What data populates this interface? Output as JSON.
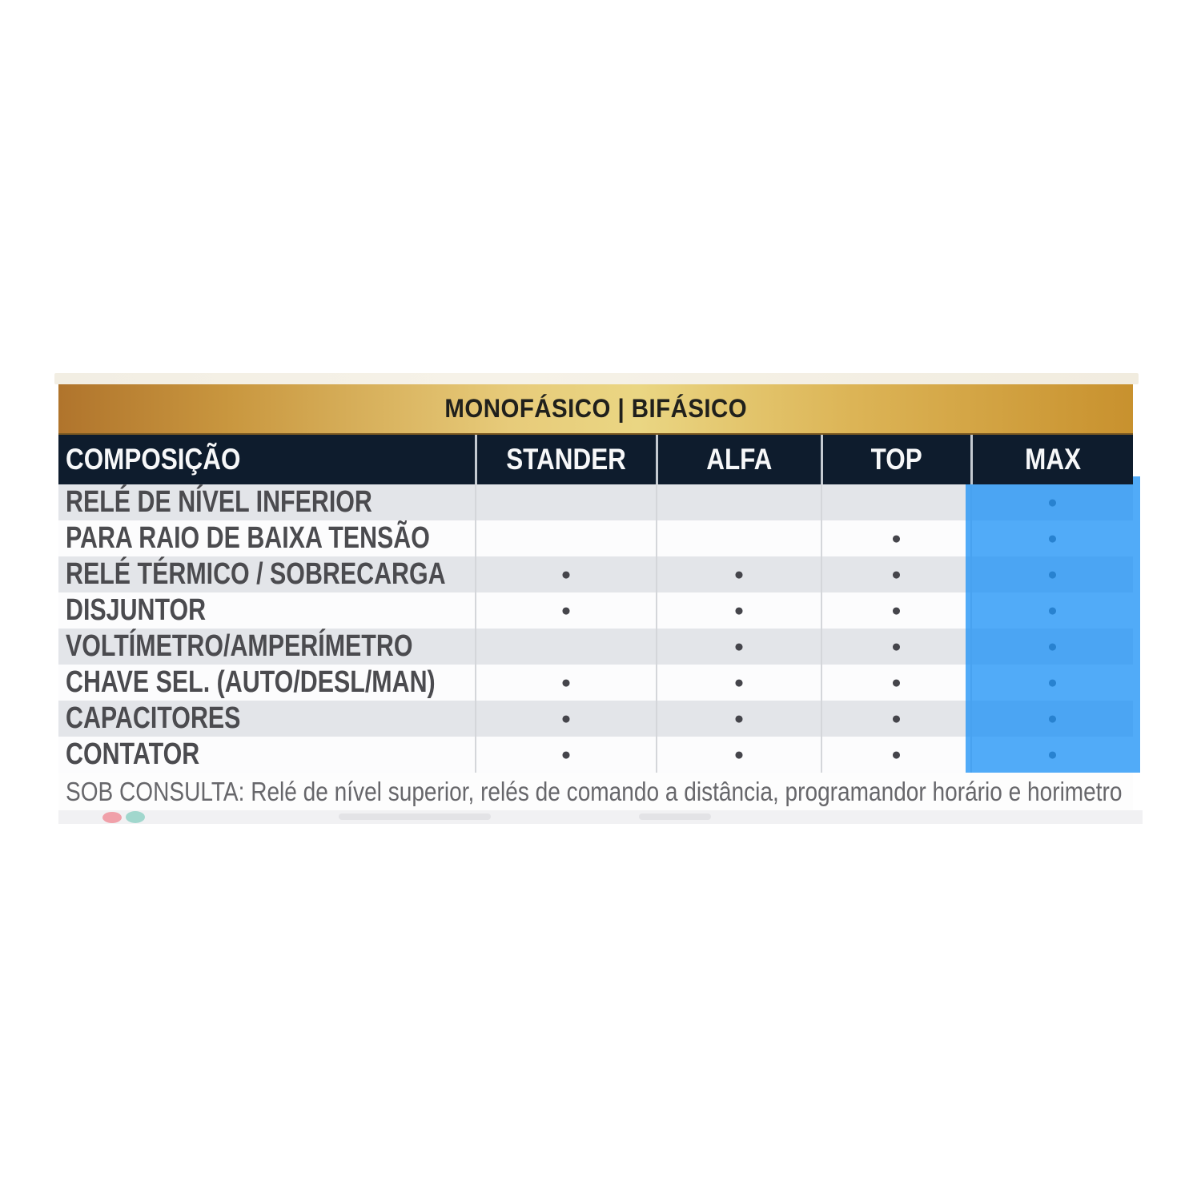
{
  "banner": {
    "title": "MONOFÁSICO | BIFÁSICO"
  },
  "table": {
    "columns": [
      "COMPOSIÇÃO",
      "STANDER",
      "ALFA",
      "TOP",
      "MAX"
    ],
    "rows": [
      {
        "label": "RELÉ DE NÍVEL INFERIOR",
        "cells": [
          "",
          "",
          "",
          "●"
        ]
      },
      {
        "label": "PARA RAIO DE BAIXA TENSÃO",
        "cells": [
          "",
          "",
          "●",
          "●"
        ]
      },
      {
        "label": "RELÉ TÉRMICO / SOBRECARGA",
        "cells": [
          "●",
          "●",
          "●",
          "●"
        ]
      },
      {
        "label": "DISJUNTOR",
        "cells": [
          "●",
          "●",
          "●",
          "●"
        ]
      },
      {
        "label": "VOLTÍMETRO/AMPERÍMETRO",
        "cells": [
          "",
          "●",
          "●",
          "●"
        ]
      },
      {
        "label": "CHAVE SEL. (AUTO/DESL/MAN)",
        "cells": [
          "●",
          "●",
          "●",
          "●"
        ]
      },
      {
        "label": "CAPACITORES",
        "cells": [
          "●",
          "●",
          "●",
          "●"
        ]
      },
      {
        "label": "CONTATOR",
        "cells": [
          "●",
          "●",
          "●",
          "●"
        ]
      }
    ],
    "footnote": "SOB CONSULTA: Relé de nível superior, relés de comando a distância, programandor horário e horimetro"
  },
  "colors": {
    "banner_gold_left": "#b0742c",
    "banner_gold_center": "#ead683",
    "banner_gold_right": "#c8912e",
    "header_navy": "#0e1c2d",
    "row_gray": "#e3e5e9",
    "row_white": "#fcfcfd",
    "label_text": "#4b4b4f",
    "max_highlight_blue": "#2094f6",
    "dot": "#45454b"
  }
}
